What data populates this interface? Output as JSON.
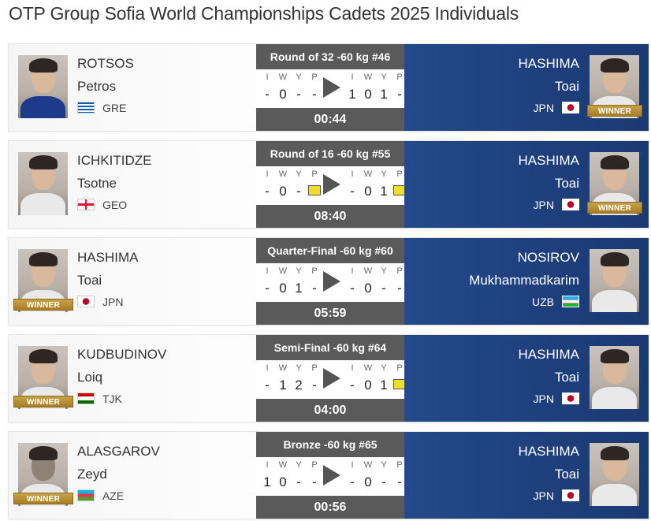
{
  "page_title": "OTP Group Sofia World Championships Cadets 2025 Individuals",
  "score_headers": [
    "I",
    "W",
    "Y",
    "P"
  ],
  "winner_label": "WINNER",
  "matches": [
    {
      "round": "Round of 32  -60 kg  #46",
      "time": "00:44",
      "white": {
        "surname": "ROTSOS",
        "given": "Petros",
        "country": "GRE",
        "flag": "greece-flag-icon",
        "winner": false,
        "gi": "blue",
        "score": [
          "-",
          "0",
          "-",
          "-"
        ]
      },
      "blue": {
        "surname": "HASHIMA",
        "given": "Toai",
        "country": "JPN",
        "flag": "japan-flag-icon",
        "winner": true,
        "score": [
          "1",
          "0",
          "1",
          "-"
        ]
      }
    },
    {
      "round": "Round of 16  -60 kg  #55",
      "time": "08:40",
      "white": {
        "surname": "ICHKITIDZE",
        "given": "Tsotne",
        "country": "GEO",
        "flag": "georgia-flag-icon",
        "winner": false,
        "gi": "white",
        "score": [
          "-",
          "0",
          "-",
          "card"
        ]
      },
      "blue": {
        "surname": "HASHIMA",
        "given": "Toai",
        "country": "JPN",
        "flag": "japan-flag-icon",
        "winner": true,
        "score": [
          "-",
          "0",
          "1",
          "card"
        ]
      }
    },
    {
      "round": "Quarter-Final  -60 kg  #60",
      "time": "05:59",
      "white": {
        "surname": "HASHIMA",
        "given": "Toai",
        "country": "JPN",
        "flag": "japan-flag-icon",
        "winner": true,
        "gi": "white",
        "score": [
          "-",
          "0",
          "1",
          "-"
        ]
      },
      "blue": {
        "surname": "NOSIROV",
        "given": "Mukhammadkarim",
        "country": "UZB",
        "flag": "uzbekistan-flag-icon",
        "winner": false,
        "score": [
          "-",
          "0",
          "-",
          "-"
        ]
      }
    },
    {
      "round": "Semi-Final  -60 kg  #64",
      "time": "04:00",
      "white": {
        "surname": "KUDBUDINOV",
        "given": "Loiq",
        "country": "TJK",
        "flag": "tajikistan-flag-icon",
        "winner": true,
        "gi": "white",
        "score": [
          "-",
          "1",
          "2",
          "-"
        ]
      },
      "blue": {
        "surname": "HASHIMA",
        "given": "Toai",
        "country": "JPN",
        "flag": "japan-flag-icon",
        "winner": false,
        "score": [
          "-",
          "0",
          "1",
          "card"
        ]
      }
    },
    {
      "round": "Bronze  -60 kg  #65",
      "time": "00:56",
      "white": {
        "surname": "ALASGAROV",
        "given": "Zeyd",
        "country": "AZE",
        "flag": "azerbaijan-flag-icon",
        "winner": true,
        "gi": "dark",
        "score": [
          "1",
          "0",
          "-",
          "-"
        ]
      },
      "blue": {
        "surname": "HASHIMA",
        "given": "Toai",
        "country": "JPN",
        "flag": "japan-flag-icon",
        "winner": false,
        "score": [
          "-",
          "0",
          "-",
          "-"
        ]
      }
    }
  ],
  "colors": {
    "blue_side": "#1e3f7c",
    "panel_bar": "#5a5a5a",
    "winner_gold": "#b58b32",
    "yellow_card": "#f2dc2a"
  }
}
